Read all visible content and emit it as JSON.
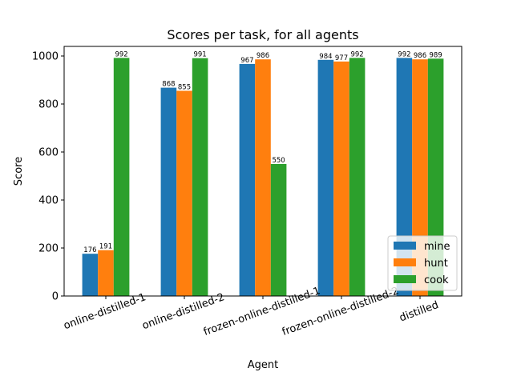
{
  "chart_data": {
    "type": "bar",
    "title": "Scores per task, for all agents",
    "xlabel": "Agent",
    "ylabel": "Score",
    "ylim": [
      0,
      1040
    ],
    "yticks": [
      0,
      200,
      400,
      600,
      800,
      1000
    ],
    "categories": [
      "online-distilled-1",
      "online-distilled-2",
      "frozen-online-distilled-1",
      "frozen-online-distilled-2",
      "distilled"
    ],
    "series": [
      {
        "name": "mine",
        "color": "#1f77b4",
        "values": [
          176,
          868,
          967,
          984,
          992
        ]
      },
      {
        "name": "hunt",
        "color": "#ff7f0e",
        "values": [
          191,
          855,
          986,
          977,
          986
        ]
      },
      {
        "name": "cook",
        "color": "#2ca02c",
        "values": [
          992,
          991,
          550,
          992,
          989
        ]
      }
    ],
    "legend_position": "lower-right",
    "grid": false
  }
}
